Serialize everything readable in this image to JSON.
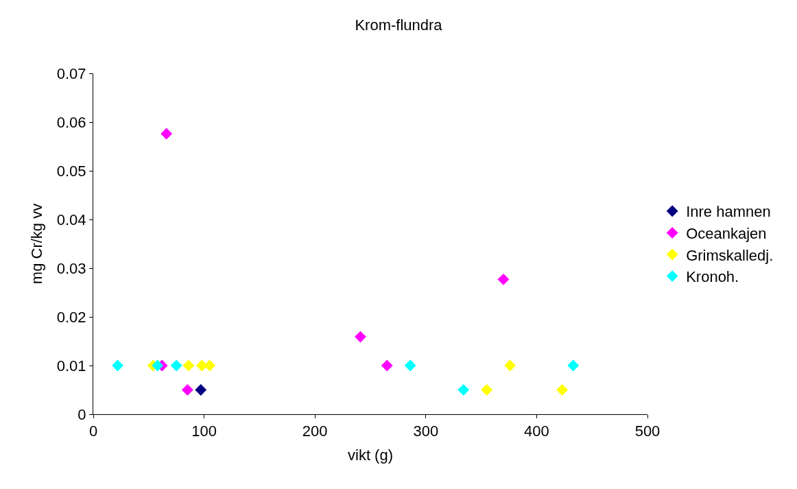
{
  "chart_data": {
    "type": "scatter",
    "title": "Krom-flundra",
    "xlabel": "vikt (g)",
    "ylabel": "mg Cr/kg vv",
    "xlim": [
      0,
      500
    ],
    "xticks": [
      0,
      100,
      200,
      300,
      400,
      500
    ],
    "ylim": [
      0,
      0.07
    ],
    "yticks": [
      0,
      0.01,
      0.02,
      0.03,
      0.04,
      0.05,
      0.06,
      0.07
    ],
    "marker": "diamond",
    "legend": "right",
    "series": [
      {
        "name": "Inre hamnen",
        "color": "#000080",
        "x": [
          97
        ],
        "values": [
          0.005
        ]
      },
      {
        "name": "Oceankajen",
        "color": "#ff00ff",
        "x": [
          66,
          62,
          85,
          241,
          265,
          370
        ],
        "values": [
          0.0576,
          0.01,
          0.005,
          0.0159,
          0.01,
          0.0277
        ]
      },
      {
        "name": "Grimskalledj.",
        "color": "#ffff00",
        "x": [
          54,
          86,
          98,
          105,
          355,
          376,
          423
        ],
        "values": [
          0.01,
          0.01,
          0.01,
          0.01,
          0.005,
          0.01,
          0.005
        ]
      },
      {
        "name": "Kronoh.",
        "color": "#00ffff",
        "x": [
          22,
          58,
          75,
          286,
          334,
          433
        ],
        "values": [
          0.01,
          0.01,
          0.01,
          0.01,
          0.005,
          0.01
        ]
      }
    ]
  }
}
